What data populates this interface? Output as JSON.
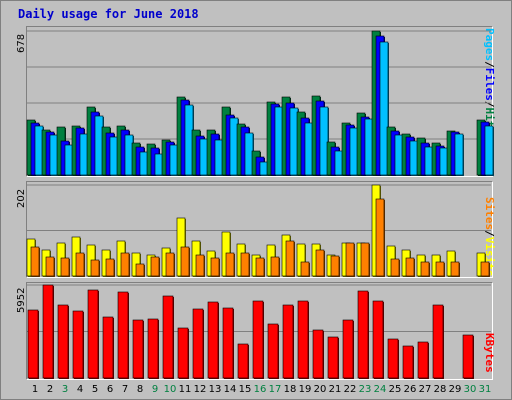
{
  "chart_data": {
    "type": "bar",
    "title": "Daily usage for June 2018",
    "categories": [
      "1",
      "2",
      "3",
      "4",
      "5",
      "6",
      "7",
      "8",
      "9",
      "10",
      "11",
      "12",
      "13",
      "14",
      "15",
      "16",
      "17",
      "18",
      "19",
      "20",
      "21",
      "22",
      "23",
      "24",
      "25",
      "26",
      "27",
      "28",
      "29",
      "30",
      "31"
    ],
    "weekend_days": [
      "3",
      "9",
      "10",
      "16",
      "17",
      "23",
      "24",
      "30",
      "31"
    ],
    "colors": {
      "hits": "#008040",
      "files": "#0000ff",
      "pages": "#00c0ff",
      "visits": "#ffff00",
      "sites": "#ff8000",
      "kbytes": "#ff0000",
      "weekday_label": "#000000",
      "weekend_label": "#008040",
      "title": "#0000cc",
      "background": "#c0c0c0"
    },
    "panels": [
      {
        "name": "hits-files-pages",
        "max_label": "678",
        "ymax": 678,
        "legend": [
          "Pages",
          "Files",
          "Hits"
        ],
        "series": [
          {
            "name": "Hits",
            "values": [
              258,
              213,
              224,
              232,
              318,
              225,
              232,
              152,
              148,
              165,
              368,
              212,
              210,
              318,
              240,
              112,
              342,
              368,
              295,
              372,
              157,
              245,
              290,
              678,
              228,
              195,
              172,
              153,
              207,
              0,
              260
            ]
          },
          {
            "name": "Files",
            "values": [
              243,
              203,
              158,
              222,
              298,
              196,
              212,
              130,
              127,
              155,
              351,
              185,
              195,
              282,
              225,
              85,
              335,
              340,
              270,
              350,
              132,
              236,
              273,
              655,
              207,
              178,
              150,
              138,
              203,
              0,
              248
            ]
          },
          {
            "name": "Pages",
            "values": [
              230,
              188,
              140,
              195,
              280,
              178,
              188,
              108,
              98,
              140,
              328,
              168,
              165,
              270,
              200,
              62,
              318,
              315,
              245,
              322,
              112,
              222,
              262,
              625,
              190,
              162,
              130,
              125,
              195,
              0,
              233
            ]
          }
        ]
      },
      {
        "name": "visits-sites",
        "max_label": "202",
        "ymax": 202,
        "legend": [
          "Sites",
          "Visits"
        ],
        "series": [
          {
            "name": "Visits",
            "values": [
              82,
              58,
              73,
              87,
              68,
              57,
              78,
              50,
              47,
              62,
              128,
              77,
              56,
              97,
              70,
              47,
              68,
              92,
              72,
              70,
              47,
              73,
              73,
              202,
              67,
              58,
              47,
              47,
              55,
              0,
              50
            ]
          },
          {
            "name": "Sites",
            "values": [
              65,
              42,
              40,
              52,
              35,
              38,
              50,
              27,
              42,
              50,
              65,
              47,
              40,
              52,
              52,
              40,
              42,
              78,
              30,
              58,
              45,
              73,
              73,
              170,
              37,
              40,
              32,
              32,
              30,
              0,
              32
            ]
          }
        ]
      },
      {
        "name": "kbytes",
        "max_label": "5952",
        "ymax": 5952,
        "legend": [
          "KBytes"
        ],
        "series": [
          {
            "name": "KBytes",
            "values": [
              4360,
              5952,
              4650,
              4300,
              5600,
              3900,
              5500,
              3700,
              3750,
              5220,
              3180,
              4400,
              4880,
              4480,
              2200,
              4950,
              3450,
              4680,
              4930,
              3050,
              2650,
              3740,
              5560,
              4930,
              2500,
              2050,
              2320,
              4650,
              0,
              2730,
              0
            ]
          }
        ]
      }
    ]
  }
}
